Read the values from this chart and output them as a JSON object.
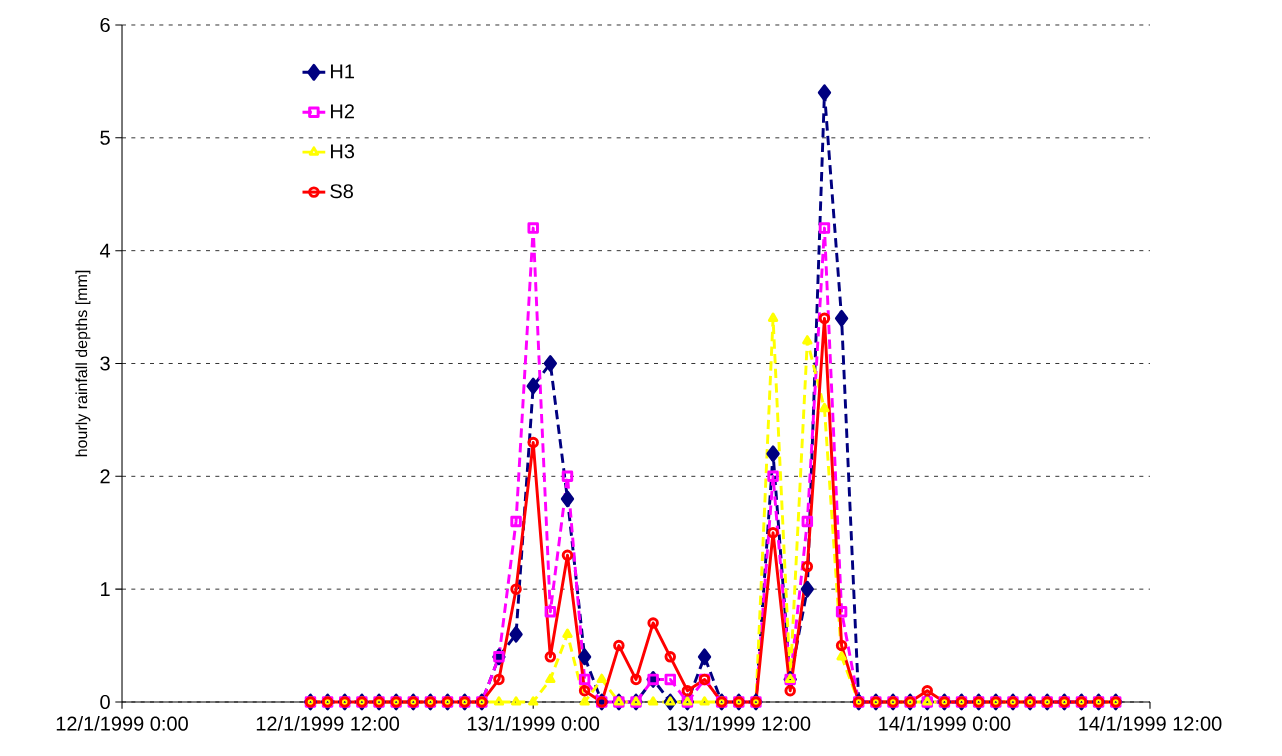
{
  "chart_data": {
    "type": "line",
    "ylabel": "hourly rainfall depths [mm]",
    "x": [
      "1999-01-12T11:00",
      "1999-01-12T12:00",
      "1999-01-12T13:00",
      "1999-01-12T14:00",
      "1999-01-12T15:00",
      "1999-01-12T16:00",
      "1999-01-12T17:00",
      "1999-01-12T18:00",
      "1999-01-12T19:00",
      "1999-01-12T20:00",
      "1999-01-12T21:00",
      "1999-01-12T22:00",
      "1999-01-12T23:00",
      "1999-01-13T00:00",
      "1999-01-13T01:00",
      "1999-01-13T02:00",
      "1999-01-13T03:00",
      "1999-01-13T04:00",
      "1999-01-13T05:00",
      "1999-01-13T06:00",
      "1999-01-13T07:00",
      "1999-01-13T08:00",
      "1999-01-13T09:00",
      "1999-01-13T10:00",
      "1999-01-13T11:00",
      "1999-01-13T12:00",
      "1999-01-13T13:00",
      "1999-01-13T14:00",
      "1999-01-13T15:00",
      "1999-01-13T16:00",
      "1999-01-13T17:00",
      "1999-01-13T18:00",
      "1999-01-13T19:00",
      "1999-01-13T20:00",
      "1999-01-13T21:00",
      "1999-01-13T22:00",
      "1999-01-13T23:00",
      "1999-01-14T00:00",
      "1999-01-14T01:00",
      "1999-01-14T02:00",
      "1999-01-14T03:00",
      "1999-01-14T04:00",
      "1999-01-14T05:00",
      "1999-01-14T06:00",
      "1999-01-14T07:00",
      "1999-01-14T08:00",
      "1999-01-14T09:00",
      "1999-01-14T10:00"
    ],
    "series": [
      {
        "name": "H1",
        "color": "#000080",
        "marker": "diamond",
        "line_style": "dashed",
        "values": [
          0,
          0,
          0,
          0,
          0,
          0,
          0,
          0,
          0,
          0,
          0,
          0.4,
          0.6,
          2.8,
          3.0,
          1.8,
          0.4,
          0,
          0,
          0,
          0.2,
          0,
          0,
          0.4,
          0,
          0,
          0,
          2.2,
          0.2,
          1.0,
          5.4,
          3.4,
          0,
          0,
          0,
          0,
          0,
          0,
          0,
          0,
          0,
          0,
          0,
          0,
          0,
          0,
          0,
          0
        ]
      },
      {
        "name": "H2",
        "color": "#ff00ff",
        "marker": "square",
        "line_style": "dashed",
        "values": [
          0,
          0,
          0,
          0,
          0,
          0,
          0,
          0,
          0,
          0,
          0,
          0.4,
          1.6,
          4.2,
          0.8,
          2.0,
          0.2,
          0,
          0,
          0,
          0.2,
          0.2,
          0,
          0.2,
          0,
          0,
          0,
          2.0,
          0.2,
          1.6,
          4.2,
          0.8,
          0,
          0,
          0,
          0,
          0,
          0,
          0,
          0,
          0,
          0,
          0,
          0,
          0,
          0,
          0,
          0
        ]
      },
      {
        "name": "H3",
        "color": "#ffff00",
        "marker": "triangle",
        "line_style": "dashed",
        "values": [
          0,
          0,
          0,
          0,
          0,
          0,
          0,
          0,
          0,
          0,
          0,
          0,
          0,
          0,
          0.2,
          0.6,
          0,
          0.2,
          0,
          0,
          0,
          0,
          0,
          0,
          0,
          0,
          0,
          3.4,
          0.2,
          3.2,
          2.6,
          0.4,
          0,
          0,
          0,
          0,
          0,
          0,
          0,
          0,
          0,
          0,
          0,
          0,
          0,
          0,
          0,
          0
        ]
      },
      {
        "name": "S8",
        "color": "#ff0000",
        "marker": "circle",
        "line_style": "solid",
        "values": [
          0,
          0,
          0,
          0,
          0,
          0,
          0,
          0,
          0,
          0,
          0,
          0.2,
          1.0,
          2.3,
          0.4,
          1.3,
          0.1,
          0,
          0.5,
          0.2,
          0.7,
          0.4,
          0.1,
          0.2,
          0,
          0,
          0,
          1.5,
          0.1,
          1.2,
          3.4,
          0.5,
          0,
          0,
          0,
          0,
          0.1,
          0,
          0,
          0,
          0,
          0,
          0,
          0,
          0,
          0,
          0,
          0
        ]
      }
    ],
    "xlim": [
      "1999-01-12T00:00",
      "1999-01-14T12:00"
    ],
    "xticks": [
      {
        "value": "1999-01-12T00:00",
        "label": "12/1/1999 0:00"
      },
      {
        "value": "1999-01-12T12:00",
        "label": "12/1/1999 12:00"
      },
      {
        "value": "1999-01-13T00:00",
        "label": "13/1/1999 0:00"
      },
      {
        "value": "1999-01-13T12:00",
        "label": "13/1/1999 12:00"
      },
      {
        "value": "1999-01-14T00:00",
        "label": "14/1/1999 0:00"
      },
      {
        "value": "1999-01-14T12:00",
        "label": "14/1/1999 12:00"
      }
    ],
    "ylim": [
      0,
      6
    ],
    "yticks": [
      0,
      1,
      2,
      3,
      4,
      5,
      6
    ],
    "grid": "y",
    "legend": "top left"
  }
}
